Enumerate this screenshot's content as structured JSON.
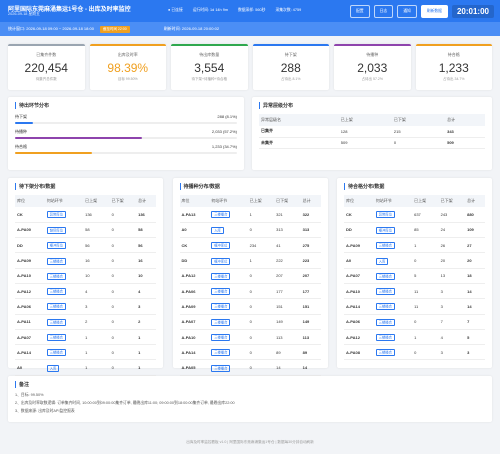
{
  "header": {
    "title": "阿里国际东莞麻涌集运1号仓 - 出库及时率监控",
    "date": "2026-09-18 星期五",
    "status": [
      "● 已连接",
      "运行时间: 1d 14h 9m",
      "数据采样: 560秒",
      "采集次数: 4759"
    ],
    "buttons": [
      "配置",
      "日志",
      "通知",
      "刷新数据"
    ],
    "clock": "20:01:00"
  },
  "window": {
    "range": "统计窗口: 2026-09-18 09:00 ~ 2026-09-18 18:00",
    "tag": "截至时间 22:00",
    "refresh": "刷新时间: 2026-09-18 20:00:02"
  },
  "kpis": [
    {
      "label": "已集齐件数",
      "value": "220,454",
      "sub": "待集齐总件数",
      "color": "#333333"
    },
    {
      "label": "出库及时率",
      "value": "98.39%",
      "sub": "目标 99.50%",
      "color": "#f0a020"
    },
    {
      "label": "待出库数量",
      "value": "3,554",
      "sub": "待下架+待播种+待合格",
      "color": "#333333"
    },
    {
      "label": "待下架",
      "value": "288",
      "sub": "占待出 8.1%",
      "color": "#333333"
    },
    {
      "label": "待播种",
      "value": "2,033",
      "sub": "占待出 57.2%",
      "color": "#333333"
    },
    {
      "label": "待合格",
      "value": "1,233",
      "sub": "占待出 34.7%",
      "color": "#333333"
    }
  ],
  "kpi_borders": [
    "#9aa5b1",
    "#f0a020",
    "#2fa84f",
    "#2b78f0",
    "#8e44ad",
    "#f0a020"
  ],
  "distribution": {
    "title": "待出环节分布",
    "items": [
      {
        "name": "待下架",
        "label": "288 (8.1%)",
        "percent": 8.1,
        "color": "#2b78f0"
      },
      {
        "name": "待播种",
        "label": "2,033 (57.2%)",
        "percent": 57.2,
        "color": "#8e44ad"
      },
      {
        "name": "待合格",
        "label": "1,233 (34.7%)",
        "percent": 34.7,
        "color": "#f0a020"
      }
    ]
  },
  "anomaly": {
    "title": "异常层级分布",
    "columns": [
      "异常层级名",
      "已上架",
      "已下架",
      "总计"
    ],
    "rows": [
      [
        "已集齐",
        128,
        215,
        343
      ],
      [
        "未集齐",
        509,
        0,
        509
      ]
    ]
  },
  "tables": [
    {
      "title": "待下架分布/数据",
      "columns": [
        "库位",
        "何站环节",
        "已上架",
        "已下架",
        "总计"
      ],
      "rows": [
        [
          "CK",
          "异常库位",
          136,
          0,
          136
        ],
        [
          "A-PA00",
          "缺货库位",
          58,
          0,
          58
        ],
        [
          "DD",
          "缓冲库位",
          56,
          0,
          56
        ],
        [
          "A-PA09",
          "三楼播合",
          16,
          0,
          16
        ],
        [
          "A-PA10",
          "三楼播合",
          10,
          0,
          10
        ],
        [
          "A-PA12",
          "三楼播合",
          4,
          0,
          4
        ],
        [
          "A-PA06",
          "三楼播合",
          3,
          0,
          3
        ],
        [
          "A-PA11",
          "三楼播合",
          2,
          0,
          2
        ],
        [
          "A-PA07",
          "三楼播合",
          1,
          0,
          1
        ],
        [
          "A-PA14",
          "三楼播合",
          1,
          0,
          1
        ],
        [
          "A0",
          "入库",
          1,
          0,
          1
        ]
      ]
    },
    {
      "title": "待播种分布/数据",
      "columns": [
        "库位",
        "何站环节",
        "已上架",
        "已下架",
        "总计"
      ],
      "rows": [
        [
          "A-PA13",
          "三楼播合",
          1,
          321,
          322
        ],
        [
          "A0",
          "入库",
          0,
          313,
          313
        ],
        [
          "CK",
          "缓冲库位",
          234,
          41,
          275
        ],
        [
          "DD",
          "缓冲库位",
          1,
          222,
          223
        ],
        [
          "A-PA12",
          "三楼播合",
          0,
          207,
          207
        ],
        [
          "A-PA06",
          "三楼播合",
          0,
          177,
          177
        ],
        [
          "A-PA09",
          "三楼播合",
          0,
          151,
          151
        ],
        [
          "A-PA07",
          "三楼播合",
          0,
          149,
          149
        ],
        [
          "A-PA10",
          "三楼播合",
          0,
          113,
          113
        ],
        [
          "A-PA14",
          "三楼播合",
          0,
          89,
          89
        ],
        [
          "A-PA05",
          "三楼播合",
          0,
          14,
          14
        ]
      ]
    },
    {
      "title": "待合格分布/数据",
      "columns": [
        "库位",
        "何站环节",
        "已上架",
        "已下架",
        "总计"
      ],
      "rows": [
        [
          "CK",
          "异常库位",
          637,
          243,
          880
        ],
        [
          "DD",
          "缓冲库位",
          85,
          24,
          109
        ],
        [
          "A-PA09",
          "三楼播合",
          1,
          26,
          27
        ],
        [
          "A0",
          "入库",
          0,
          20,
          20
        ],
        [
          "A-PA07",
          "三楼播合",
          5,
          13,
          18
        ],
        [
          "A-PA10",
          "三楼播合",
          11,
          3,
          14
        ],
        [
          "A-PA14",
          "三楼播合",
          11,
          3,
          14
        ],
        [
          "A-PA06",
          "三楼播合",
          0,
          7,
          7
        ],
        [
          "A-PA12",
          "三楼播合",
          1,
          4,
          5
        ],
        [
          "A-PA08",
          "三楼播合",
          0,
          3,
          3
        ]
      ]
    }
  ],
  "notes": {
    "title": "备注",
    "lines": [
      "1、目标: 99.50%",
      "2、出库及时率取数逻辑: 订单集齐时间, 10:00:00到09:00:00集齐订单, 最晚出库11:00; 09:00:00到18:00:00集齐订单, 最晚出库22:00",
      "3、数据来源: 出库及时API监控报表"
    ]
  },
  "footer": "出库及时率监控看板 v1.0 | 阿里国际东莞麻涌集运1号仓 | 数据每30分钟自动刷新"
}
